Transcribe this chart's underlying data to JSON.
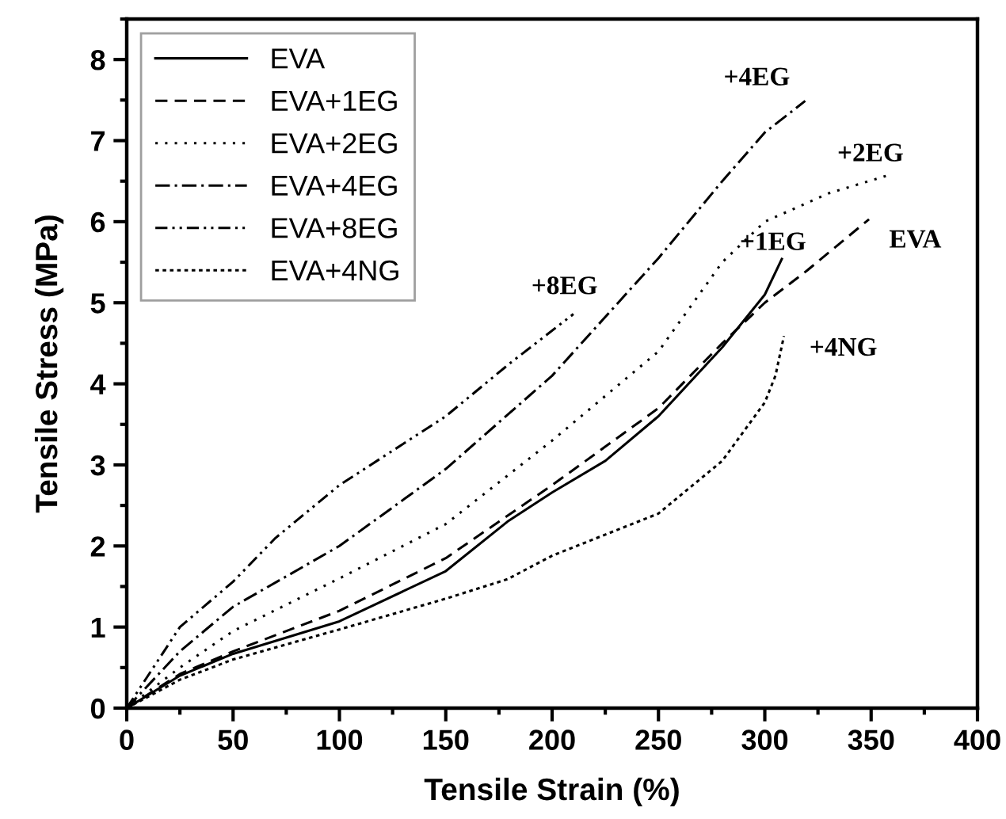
{
  "chart_data": {
    "type": "line",
    "xlabel": "Tensile Strain (%)",
    "ylabel": "Tensile Stress (MPa)",
    "xlim": [
      0,
      400
    ],
    "xticks": [
      0,
      50,
      100,
      150,
      200,
      250,
      300,
      350,
      400
    ],
    "ylim": [
      0,
      8.5
    ],
    "yticks": [
      0,
      1,
      2,
      3,
      4,
      5,
      6,
      7,
      8
    ],
    "grid": false,
    "legend": "top left",
    "marker": "none",
    "series": [
      {
        "name": "EVA",
        "color": "#000000",
        "line_style": "solid",
        "x": [
          0,
          25,
          50,
          100,
          150,
          179,
          200,
          225,
          250,
          280,
          300,
          308
        ],
        "values": [
          0,
          0.4,
          0.67,
          1.07,
          1.69,
          2.3,
          2.66,
          3.05,
          3.6,
          4.45,
          5.1,
          5.54
        ]
      },
      {
        "name": "EVA+1EG",
        "color": "#000000",
        "line_style": "dashed",
        "x": [
          0,
          25,
          50,
          100,
          150,
          200,
          250,
          280,
          300,
          320,
          349
        ],
        "values": [
          0,
          0.42,
          0.7,
          1.2,
          1.85,
          2.75,
          3.7,
          4.5,
          5.0,
          5.4,
          6.03
        ]
      },
      {
        "name": "EVA+2EG",
        "color": "#000000",
        "line_style": "dotted",
        "x": [
          0,
          25,
          50,
          100,
          150,
          200,
          250,
          280,
          300,
          330,
          359
        ],
        "values": [
          0,
          0.5,
          0.95,
          1.6,
          2.27,
          3.3,
          4.4,
          5.5,
          6.0,
          6.35,
          6.58
        ]
      },
      {
        "name": "EVA+4EG",
        "color": "#000000",
        "line_style": "dashdot",
        "x": [
          0,
          25,
          50,
          100,
          150,
          200,
          250,
          280,
          300,
          319
        ],
        "values": [
          0,
          0.7,
          1.25,
          2.0,
          2.95,
          4.1,
          5.55,
          6.5,
          7.1,
          7.49
        ]
      },
      {
        "name": "EVA+8EG",
        "color": "#000000",
        "line_style": "dashdotdot",
        "x": [
          0,
          25,
          50,
          70,
          100,
          150,
          180,
          210
        ],
        "values": [
          0,
          1.0,
          1.56,
          2.1,
          2.75,
          3.6,
          4.25,
          4.86
        ]
      },
      {
        "name": "EVA+4NG",
        "color": "#000000",
        "line_style": "densedotted",
        "x": [
          0,
          25,
          50,
          100,
          150,
          179,
          200,
          250,
          280,
          300,
          305,
          309
        ],
        "values": [
          0,
          0.35,
          0.6,
          0.97,
          1.35,
          1.59,
          1.88,
          2.4,
          3.05,
          3.77,
          4.1,
          4.59
        ]
      }
    ],
    "annotations": [
      "+4EG",
      "+2EG",
      "EVA",
      "+1EG",
      "+8EG",
      "+4NG"
    ]
  }
}
